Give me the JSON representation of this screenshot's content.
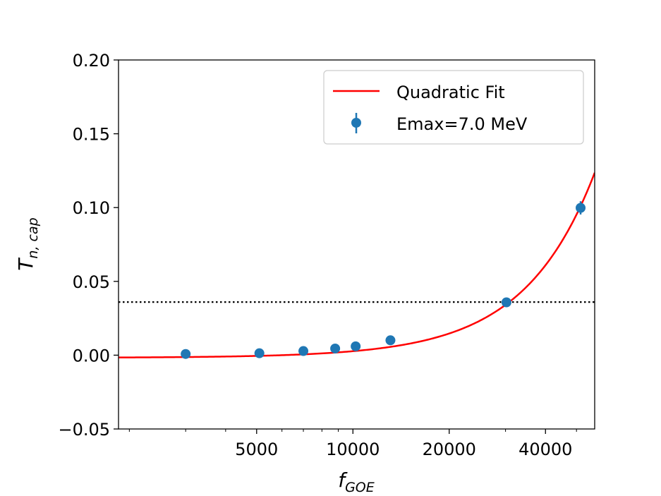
{
  "chart_data": {
    "type": "scatter",
    "title": "",
    "xlabel": {
      "main": "f",
      "sub": "GOE"
    },
    "ylabel": {
      "main": "T",
      "sub": "n, cap"
    },
    "x_scale": "log",
    "xlim": [
      1850,
      57000
    ],
    "ylim": [
      -0.05,
      0.2
    ],
    "x_ticks": [
      {
        "value": 5000,
        "label": "5000"
      },
      {
        "value": 10000,
        "label": "10000"
      },
      {
        "value": 20000,
        "label": "20000"
      },
      {
        "value": 40000,
        "label": "40000"
      }
    ],
    "x_minor_ticks": [
      2000,
      3000,
      4000,
      6000,
      7000,
      8000,
      9000,
      30000,
      50000
    ],
    "y_ticks": [
      {
        "value": -0.05,
        "label": "−0.05"
      },
      {
        "value": 0.0,
        "label": "0.00"
      },
      {
        "value": 0.05,
        "label": "0.05"
      },
      {
        "value": 0.1,
        "label": "0.10"
      },
      {
        "value": 0.15,
        "label": "0.15"
      },
      {
        "value": 0.2,
        "label": "0.20"
      }
    ],
    "series": [
      {
        "name": "Emax=7.0 MeV",
        "kind": "errorbar",
        "color": "#1f77b4",
        "points": [
          {
            "x": 3000,
            "y": 0.0008,
            "err": 0.0005
          },
          {
            "x": 5100,
            "y": 0.0013,
            "err": 0.0005
          },
          {
            "x": 7000,
            "y": 0.0028,
            "err": 0.0005
          },
          {
            "x": 8800,
            "y": 0.0045,
            "err": 0.0006
          },
          {
            "x": 10200,
            "y": 0.006,
            "err": 0.0007
          },
          {
            "x": 13100,
            "y": 0.0101,
            "err": 0.0008
          },
          {
            "x": 30200,
            "y": 0.0358,
            "err": 0.0015
          },
          {
            "x": 51500,
            "y": 0.0998,
            "err": 0.0045
          }
        ]
      },
      {
        "name": "Quadratic Fit",
        "kind": "line",
        "color": "#ff0000",
        "coefficients": {
          "a": 3.715e-11,
          "b": 8.37e-08,
          "c": -0.00185
        },
        "x_range": [
          1850,
          57000
        ]
      }
    ],
    "reference_line": {
      "y": 0.036,
      "style": "dotted",
      "color": "#000000"
    },
    "legend": {
      "position": "upper right",
      "entries": [
        {
          "label": "Quadratic Fit",
          "kind": "line",
          "color": "#ff0000"
        },
        {
          "label": "Emax=7.0 MeV",
          "kind": "errorbar",
          "color": "#1f77b4"
        }
      ]
    }
  }
}
